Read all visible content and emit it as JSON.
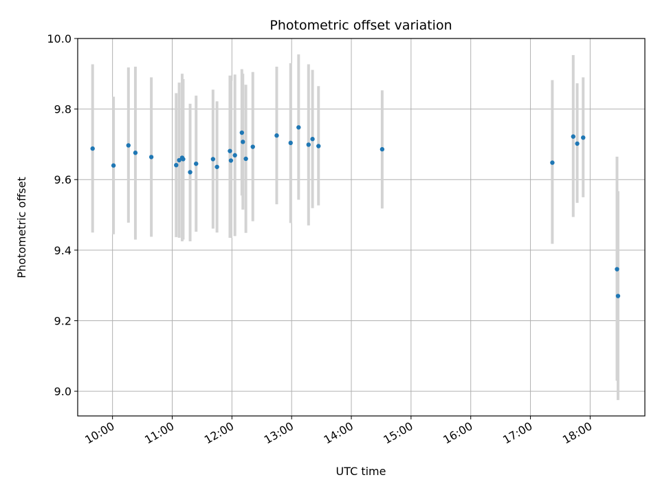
{
  "chart_data": {
    "type": "scatter",
    "title": "Photometric offset variation",
    "xlabel": "UTC time",
    "ylabel": "Photometric offset",
    "x_unit": "hours (UTC)",
    "xlim": [
      "09:25",
      "18:55"
    ],
    "ylim": [
      8.93,
      10.0
    ],
    "grid": true,
    "x_ticks": [
      "10:00",
      "11:00",
      "12:00",
      "13:00",
      "14:00",
      "15:00",
      "16:00",
      "17:00",
      "18:00"
    ],
    "y_ticks": [
      "9.0",
      "9.2",
      "9.4",
      "9.6",
      "9.8",
      "10.0"
    ],
    "colors": {
      "point": "#1f77b4",
      "errorbar": "#d3d3d3",
      "grid": "#b0b0b0"
    },
    "series": [
      {
        "points": [
          {
            "x": "09:40",
            "y": 9.688,
            "lo": 9.45,
            "hi": 9.927
          },
          {
            "x": "10:01",
            "y": 9.64,
            "lo": 9.445,
            "hi": 9.835
          },
          {
            "x": "10:16",
            "y": 9.697,
            "lo": 9.478,
            "hi": 9.918
          },
          {
            "x": "10:23",
            "y": 9.676,
            "lo": 9.43,
            "hi": 9.92
          },
          {
            "x": "10:39",
            "y": 9.664,
            "lo": 9.438,
            "hi": 9.89
          },
          {
            "x": "11:04",
            "y": 9.641,
            "lo": 9.437,
            "hi": 9.845
          },
          {
            "x": "11:07",
            "y": 9.655,
            "lo": 9.435,
            "hi": 9.875
          },
          {
            "x": "11:10",
            "y": 9.662,
            "lo": 9.425,
            "hi": 9.9
          },
          {
            "x": "11:11",
            "y": 9.658,
            "lo": 9.43,
            "hi": 9.885
          },
          {
            "x": "11:18",
            "y": 9.621,
            "lo": 9.425,
            "hi": 9.815
          },
          {
            "x": "11:24",
            "y": 9.645,
            "lo": 9.452,
            "hi": 9.838
          },
          {
            "x": "11:41",
            "y": 9.658,
            "lo": 9.461,
            "hi": 9.855
          },
          {
            "x": "11:45",
            "y": 9.636,
            "lo": 9.45,
            "hi": 9.822
          },
          {
            "x": "11:58",
            "y": 9.681,
            "lo": 9.435,
            "hi": 9.895
          },
          {
            "x": "11:59",
            "y": 9.654,
            "lo": 9.435,
            "hi": 9.88
          },
          {
            "x": "12:03",
            "y": 9.669,
            "lo": 9.44,
            "hi": 9.898
          },
          {
            "x": "12:10",
            "y": 9.733,
            "lo": 9.555,
            "hi": 9.913
          },
          {
            "x": "12:11",
            "y": 9.707,
            "lo": 9.515,
            "hi": 9.9
          },
          {
            "x": "12:14",
            "y": 9.659,
            "lo": 9.449,
            "hi": 9.869
          },
          {
            "x": "12:21",
            "y": 9.693,
            "lo": 9.482,
            "hi": 9.905
          },
          {
            "x": "12:45",
            "y": 9.725,
            "lo": 9.53,
            "hi": 9.92
          },
          {
            "x": "12:59",
            "y": 9.704,
            "lo": 9.477,
            "hi": 9.93
          },
          {
            "x": "13:07",
            "y": 9.748,
            "lo": 9.543,
            "hi": 9.955
          },
          {
            "x": "13:17",
            "y": 9.699,
            "lo": 9.47,
            "hi": 9.927
          },
          {
            "x": "13:21",
            "y": 9.715,
            "lo": 9.519,
            "hi": 9.911
          },
          {
            "x": "13:27",
            "y": 9.695,
            "lo": 9.527,
            "hi": 9.865
          },
          {
            "x": "14:31",
            "y": 9.686,
            "lo": 9.518,
            "hi": 9.853
          },
          {
            "x": "17:22",
            "y": 9.648,
            "lo": 9.418,
            "hi": 9.882
          },
          {
            "x": "17:43",
            "y": 9.722,
            "lo": 9.494,
            "hi": 9.953
          },
          {
            "x": "17:47",
            "y": 9.702,
            "lo": 9.534,
            "hi": 9.873
          },
          {
            "x": "17:53",
            "y": 9.719,
            "lo": 9.55,
            "hi": 9.89
          },
          {
            "x": "18:27",
            "y": 9.346,
            "lo": 9.03,
            "hi": 9.665
          },
          {
            "x": "18:28",
            "y": 9.27,
            "lo": 8.975,
            "hi": 9.567
          }
        ]
      }
    ]
  }
}
